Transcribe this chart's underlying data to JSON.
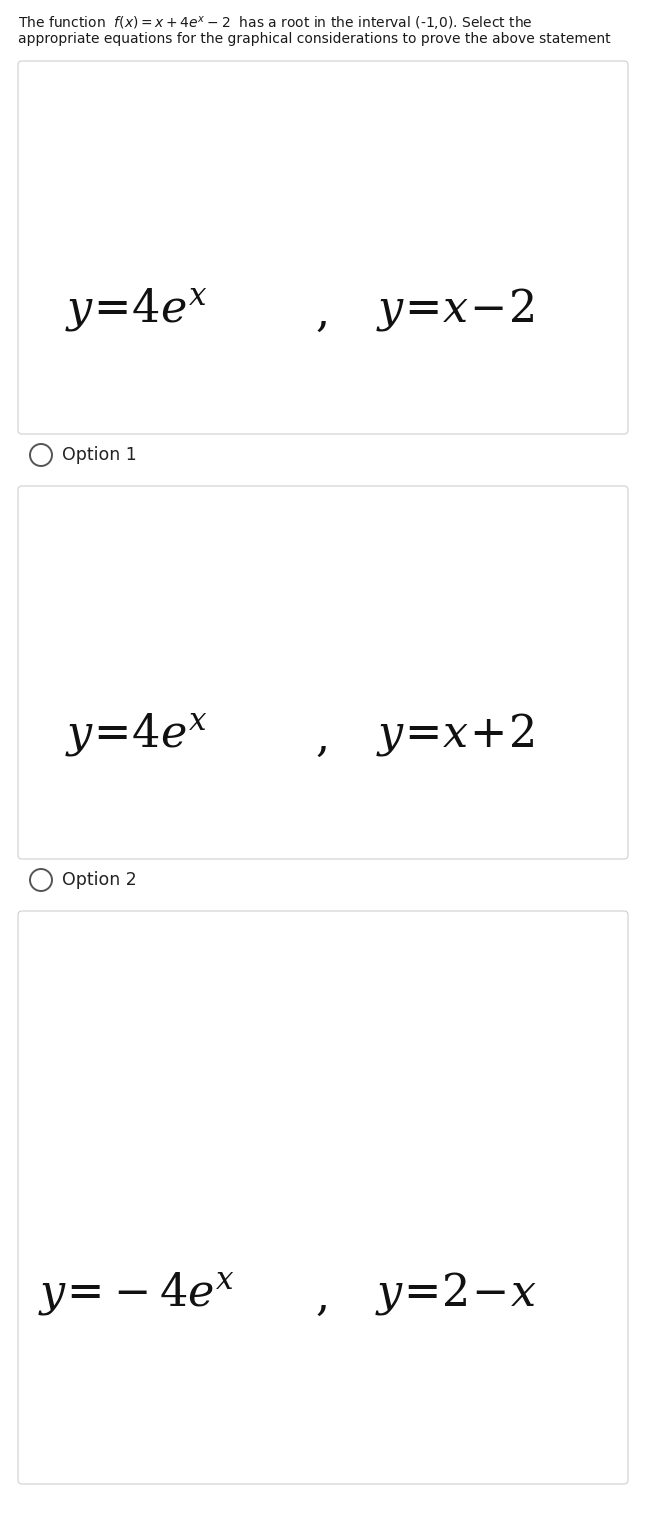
{
  "title_line1": "The function  $f(x) = x + 4e^x - 2$  has a root in the interval (-1,0). Select the",
  "title_line2": "appropriate equations for the graphical considerations to prove the above statement",
  "title_fontsize": 10.0,
  "title_color": "#1a1a1a",
  "bg_color": "#ffffff",
  "box_bg": "#ffffff",
  "box_edge": "#d0d0d0",
  "options": [
    {
      "eq1": "$y\\!=\\!4e^{x}$",
      "eq2": "$y\\!=\\!x\\!-\\!2$",
      "label": "Option 1"
    },
    {
      "eq1": "$y\\!=\\!4e^{x}$",
      "eq2": "$y\\!=\\!x\\!+\\!2$",
      "label": "Option 2"
    },
    {
      "eq1": "$y\\!=\\!-4e^{x}$",
      "eq2": "$y\\!=\\!2\\!-\\!x$",
      "label": null
    }
  ],
  "eq_fontsize": 32,
  "label_fontsize": 12.5,
  "figwidth": 6.46,
  "figheight": 15.2,
  "dpi": 100
}
